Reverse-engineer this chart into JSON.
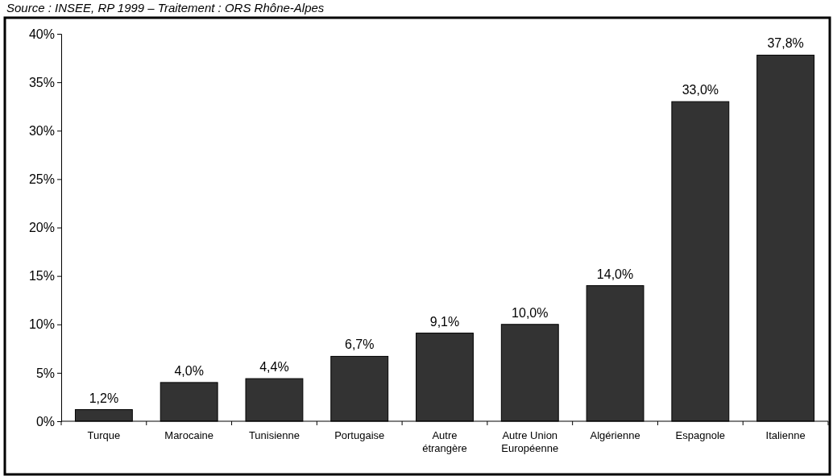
{
  "chart_data": {
    "type": "bar",
    "annotations": [
      "Source : INSEE, RP 1999 – Traitement : ORS Rhône-Alpes"
    ],
    "categories": [
      "Turque",
      "Marocaine",
      "Tunisienne",
      "Portugaise",
      "Autre\nétrangère",
      "Autre Union\nEuropéenne",
      "Algérienne",
      "Espagnole",
      "Italienne"
    ],
    "values": [
      1.2,
      4.0,
      4.4,
      6.7,
      9.1,
      10.0,
      14.0,
      33.0,
      37.8
    ],
    "value_labels": [
      "1,2%",
      "4,0%",
      "4,4%",
      "6,7%",
      "9,1%",
      "10,0%",
      "14,0%",
      "33,0%",
      "37,8%"
    ],
    "color": "#333333",
    "ylim": [
      0,
      40
    ],
    "yticks": [
      {
        "value": 0,
        "label": "0%"
      },
      {
        "value": 5,
        "label": "5%"
      },
      {
        "value": 10,
        "label": "10%"
      },
      {
        "value": 15,
        "label": "15%"
      },
      {
        "value": 20,
        "label": "20%"
      },
      {
        "value": 25,
        "label": "25%"
      },
      {
        "value": 30,
        "label": "30%"
      },
      {
        "value": 35,
        "label": "35%"
      },
      {
        "value": 40,
        "label": "40%"
      }
    ]
  }
}
